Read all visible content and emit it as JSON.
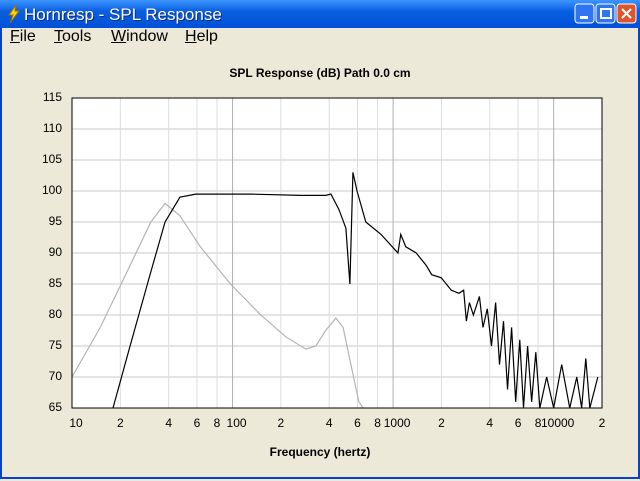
{
  "window": {
    "title": "Hornresp - SPL Response",
    "menu": [
      "File",
      "Tools",
      "Window",
      "Help"
    ]
  },
  "chart_data": {
    "type": "line",
    "title": "SPL Response (dB)   Path 0.0 cm",
    "x_label": "Frequency (hertz)",
    "log_x": true,
    "grid": true,
    "xlim": [
      10,
      20000
    ],
    "ylim": [
      65,
      115
    ],
    "xticks": [
      10,
      {
        "value": 20,
        "label": "2"
      },
      {
        "value": 40,
        "label": "4"
      },
      {
        "value": 60,
        "label": "6"
      },
      {
        "value": 80,
        "label": "8"
      },
      100,
      {
        "value": 200,
        "label": "2"
      },
      {
        "value": 400,
        "label": "4"
      },
      {
        "value": 600,
        "label": "6"
      },
      {
        "value": 800,
        "label": "8"
      },
      1000,
      {
        "value": 2000,
        "label": "2"
      },
      {
        "value": 4000,
        "label": "4"
      },
      {
        "value": 6000,
        "label": "6"
      },
      {
        "value": 8000,
        "label": "8"
      },
      10000,
      {
        "value": 20000,
        "label": "2"
      }
    ],
    "yticks": [
      65,
      70,
      75,
      80,
      85,
      90,
      95,
      100,
      105,
      110,
      115
    ],
    "series": [
      {
        "color": "#000000",
        "x": [
          18,
          23,
          31,
          38,
          47,
          59,
          130,
          266,
          380,
          410,
          460,
          508,
          538,
          562,
          596,
          676,
          841,
          1072,
          1116,
          1200,
          1393,
          1607,
          1740,
          1995,
          2304,
          2570,
          2750,
          2860,
          2985,
          3162,
          3447,
          3630,
          3860,
          4097,
          4350,
          4600,
          4870,
          5160,
          5470,
          5800,
          6150,
          6490,
          6880,
          7290,
          7740,
          8200,
          9040,
          10000,
          11220,
          12590,
          13930,
          14940,
          15850,
          16800,
          18840
        ],
        "values": [
          65,
          75,
          87,
          95,
          99,
          99.5,
          99.5,
          99.3,
          99.3,
          99.5,
          97,
          94,
          85,
          103,
          100,
          95,
          93,
          90,
          93,
          91,
          90,
          88,
          86.5,
          86,
          84,
          83.5,
          84,
          79,
          82,
          80,
          83,
          78,
          81,
          75,
          82,
          72,
          79,
          68,
          78,
          66,
          76,
          65,
          75,
          66,
          74,
          65,
          70,
          65,
          72,
          65,
          70,
          65,
          73,
          65,
          70
        ]
      },
      {
        "color": "#b4b4b4",
        "x": [
          10,
          15,
          23,
          31,
          38,
          47,
          63,
          97,
          150,
          214,
          286,
          330,
          380,
          440,
          488,
          546,
          612,
          650
        ],
        "values": [
          70,
          78,
          88,
          95,
          98,
          96,
          91,
          85,
          80,
          76.5,
          74.5,
          75,
          77.5,
          79.5,
          78,
          72,
          66,
          65
        ]
      }
    ]
  }
}
